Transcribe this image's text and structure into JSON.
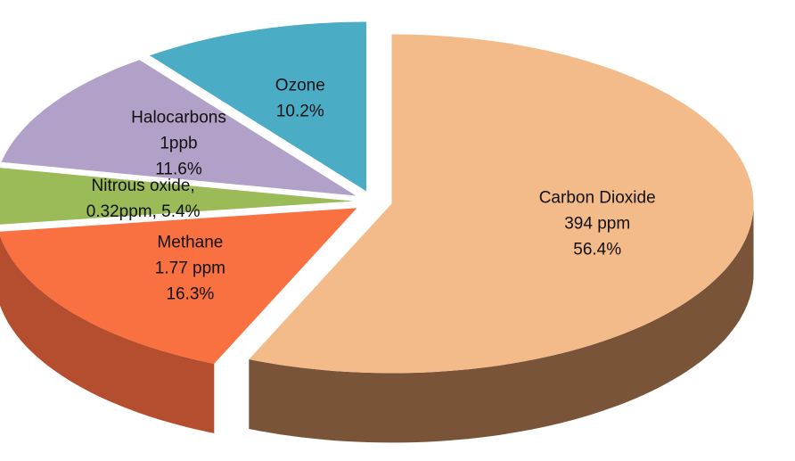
{
  "chart_data": {
    "type": "pie",
    "style": "3d-exploded",
    "title": "",
    "legend": "none",
    "slices": [
      {
        "name": "Carbon Dioxide",
        "lines": [
          "Carbon Dioxide",
          "394 ppm",
          "56.4%"
        ],
        "value": 56.4,
        "color": "#F4BB8A",
        "side": "#7A5438"
      },
      {
        "name": "Methane",
        "lines": [
          "Methane",
          "1.77 ppm",
          "16.3%"
        ],
        "value": 16.3,
        "color": "#F97041",
        "side": "#B44E2E"
      },
      {
        "name": "Nitrous oxide",
        "lines": [
          "Nitrous oxide,",
          "0.32ppm, 5.4%"
        ],
        "value": 5.4,
        "color": "#9BBB59",
        "side": "#5F7536"
      },
      {
        "name": "Halocarbons",
        "lines": [
          "Halocarbons",
          "1ppb",
          "11.6%"
        ],
        "value": 11.6,
        "color": "#B1A0C7",
        "side": "#6E5F82"
      },
      {
        "name": "Ozone",
        "lines": [
          "Ozone",
          "10.2%"
        ],
        "value": 10.2,
        "color": "#4BACC6",
        "side": "#215B6C"
      }
    ]
  }
}
